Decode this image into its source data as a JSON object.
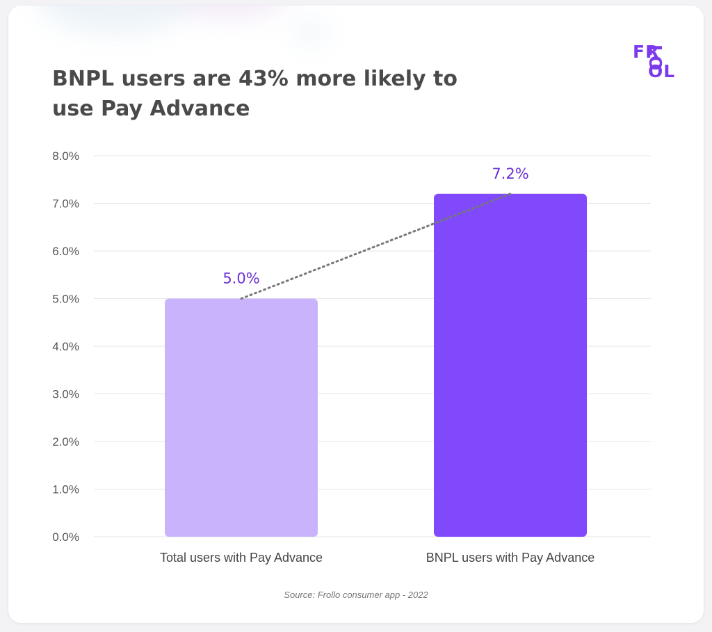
{
  "colors": {
    "bar_total": "#c9b3fc",
    "bar_bnpl": "#8049fc",
    "accent": "#7c3aed",
    "value_label": "#6a30d6",
    "grid": "#e6e6e6",
    "dotted_line": "#777777"
  },
  "logo": {
    "text": "FROLLO",
    "line1": "FR",
    "line2": "OL",
    "rotated": "LO"
  },
  "source": "Source: Frollo consumer app - 2022",
  "chart_data": {
    "type": "bar",
    "title": "BNPL users are 43% more likely to use Pay Advance",
    "categories": [
      "Total users with Pay Advance",
      "BNPL users with Pay Advance"
    ],
    "values": [
      5.0,
      7.2
    ],
    "value_labels": [
      "5.0%",
      "7.2%"
    ],
    "xlabel": "",
    "ylabel": "",
    "ylim": [
      0,
      8
    ],
    "y_ticks": [
      0,
      1,
      2,
      3,
      4,
      5,
      6,
      7,
      8
    ],
    "y_tick_labels": [
      "0.0%",
      "1.0%",
      "2.0%",
      "3.0%",
      "4.0%",
      "5.0%",
      "6.0%",
      "7.0%",
      "8.0%"
    ],
    "grid": true,
    "legend": "none",
    "connector": "dotted line between bar tops"
  }
}
